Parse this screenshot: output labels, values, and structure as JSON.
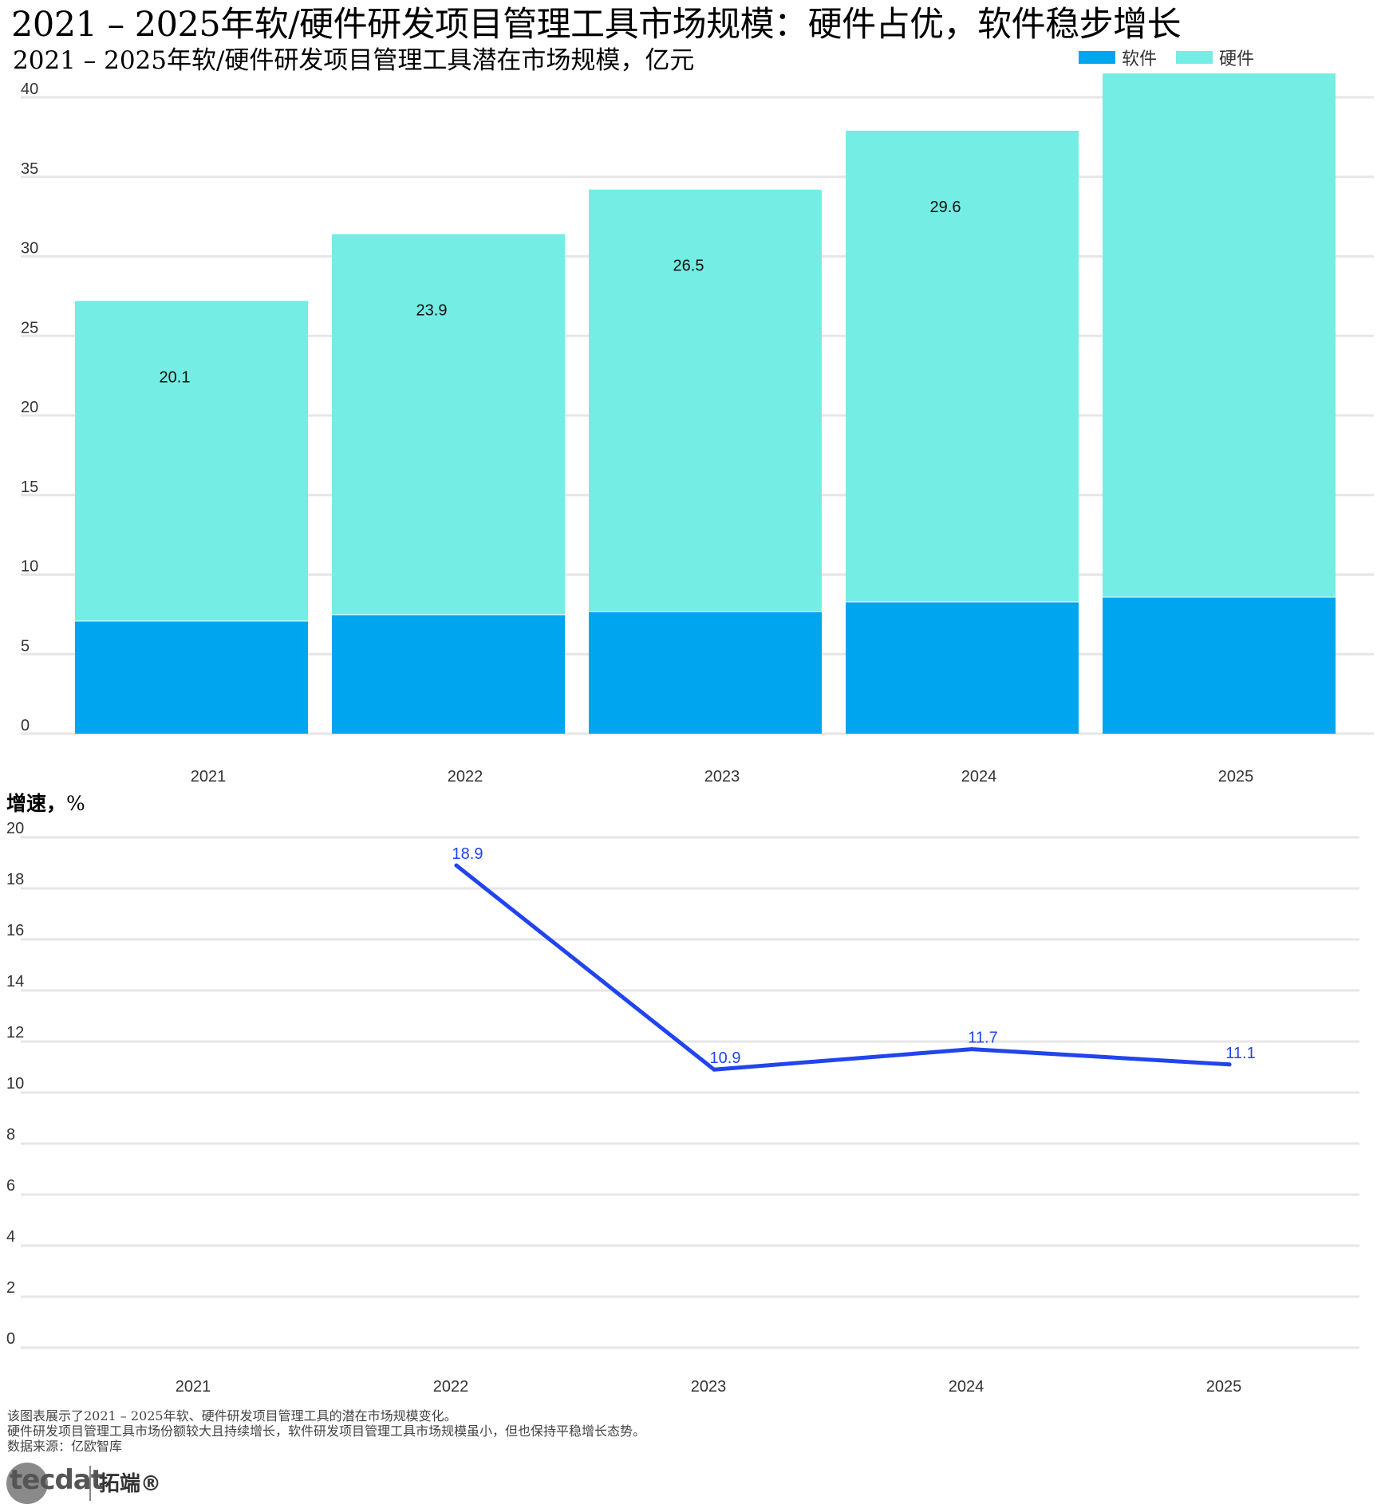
{
  "title": "2021 – 2025年软/硬件研发项目管理工具市场规模：硬件占优，软件稳步增长",
  "chart_data": [
    {
      "type": "bar",
      "stacked": true,
      "title": "2021 – 2025年软/硬件研发项目管理工具潜在市场规模，亿元",
      "categories": [
        "2021",
        "2022",
        "2023",
        "2024",
        "2025"
      ],
      "series": [
        {
          "name": "软件",
          "values": [
            7.1,
            7.5,
            7.7,
            8.3,
            8.6
          ],
          "color": "#00a5f0"
        },
        {
          "name": "硬件",
          "values": [
            20.1,
            23.9,
            26.5,
            29.6,
            32.9
          ],
          "color": "#74ede4",
          "labels": [
            "20.1",
            "23.9",
            "26.5",
            "29.6",
            ""
          ]
        }
      ],
      "ylim": [
        0,
        40
      ],
      "yticks": [
        0,
        5,
        10,
        15,
        20,
        25,
        30,
        35,
        40
      ],
      "grid": true,
      "legend_position": "top-right"
    },
    {
      "type": "line",
      "title_bold": "增速，",
      "title_unit": "%",
      "categories": [
        "2021",
        "2022",
        "2023",
        "2024",
        "2025"
      ],
      "series": [
        {
          "name": "增速",
          "values": [
            null,
            18.9,
            10.9,
            11.7,
            11.1
          ],
          "color": "#2244ee"
        }
      ],
      "ylim": [
        0,
        20
      ],
      "yticks": [
        0,
        2,
        4,
        6,
        8,
        10,
        12,
        14,
        16,
        18,
        20
      ],
      "grid": true
    }
  ],
  "notes": [
    "该图表展示了2021 – 2025年软、硬件研发项目管理工具的潜在市场规模变化。",
    "硬件研发项目管理工具市场份额较大且持续增长，软件研发项目管理工具市场规模虽小，但也保持平稳增长态势。",
    "数据来源：亿欧智库"
  ],
  "logo": {
    "text": "tecdat",
    "cn": "拓端®"
  }
}
